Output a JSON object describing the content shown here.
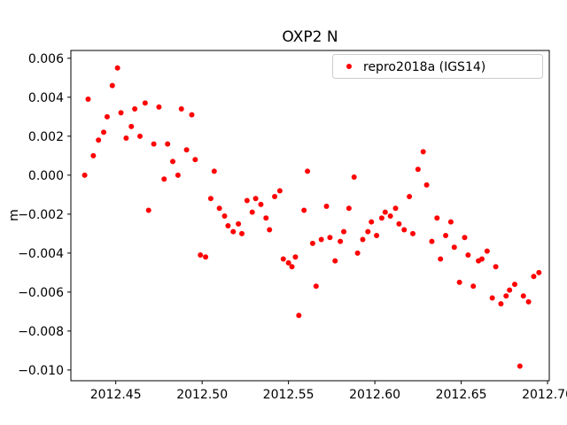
{
  "chart_data": {
    "type": "scatter",
    "title": "OXP2 N",
    "xlabel": "",
    "ylabel": "m",
    "grid": false,
    "legend_position": "upper right",
    "xlim": [
      2012.424,
      2012.701
    ],
    "ylim": [
      -0.01055,
      0.0064
    ],
    "xticks": [
      2012.45,
      2012.5,
      2012.55,
      2012.6,
      2012.65,
      2012.7
    ],
    "yticks": [
      0.006,
      0.004,
      0.002,
      0.0,
      -0.002,
      -0.004,
      -0.006,
      -0.008,
      -0.01
    ],
    "marker": {
      "shape": "circle",
      "size": 3,
      "color": "#ff0000"
    },
    "series": [
      {
        "name": "repro2018a (IGS14)",
        "color": "#ff0000",
        "points": [
          [
            2012.432,
            0.0
          ],
          [
            2012.434,
            0.0039
          ],
          [
            2012.437,
            0.001
          ],
          [
            2012.44,
            0.0018
          ],
          [
            2012.443,
            0.0022
          ],
          [
            2012.445,
            0.003
          ],
          [
            2012.448,
            0.0046
          ],
          [
            2012.451,
            0.0055
          ],
          [
            2012.453,
            0.0032
          ],
          [
            2012.456,
            0.0019
          ],
          [
            2012.459,
            0.0025
          ],
          [
            2012.461,
            0.0034
          ],
          [
            2012.464,
            0.002
          ],
          [
            2012.467,
            0.0037
          ],
          [
            2012.469,
            -0.0018
          ],
          [
            2012.472,
            0.0016
          ],
          [
            2012.475,
            0.0035
          ],
          [
            2012.478,
            -0.0002
          ],
          [
            2012.48,
            0.0016
          ],
          [
            2012.483,
            0.0007
          ],
          [
            2012.486,
            0.0
          ],
          [
            2012.488,
            0.0034
          ],
          [
            2012.491,
            0.0013
          ],
          [
            2012.494,
            0.0031
          ],
          [
            2012.496,
            0.0008
          ],
          [
            2012.499,
            -0.0041
          ],
          [
            2012.502,
            -0.0042
          ],
          [
            2012.505,
            -0.0012
          ],
          [
            2012.507,
            0.0002
          ],
          [
            2012.51,
            -0.0017
          ],
          [
            2012.513,
            -0.0021
          ],
          [
            2012.515,
            -0.0026
          ],
          [
            2012.518,
            -0.0029
          ],
          [
            2012.521,
            -0.0025
          ],
          [
            2012.523,
            -0.003
          ],
          [
            2012.526,
            -0.0013
          ],
          [
            2012.529,
            -0.0019
          ],
          [
            2012.531,
            -0.0012
          ],
          [
            2012.534,
            -0.0015
          ],
          [
            2012.537,
            -0.0022
          ],
          [
            2012.539,
            -0.0028
          ],
          [
            2012.542,
            -0.0011
          ],
          [
            2012.545,
            -0.0008
          ],
          [
            2012.547,
            -0.0043
          ],
          [
            2012.55,
            -0.0045
          ],
          [
            2012.552,
            -0.0047
          ],
          [
            2012.554,
            -0.0042
          ],
          [
            2012.556,
            -0.0072
          ],
          [
            2012.559,
            -0.0018
          ],
          [
            2012.561,
            0.0002
          ],
          [
            2012.564,
            -0.0035
          ],
          [
            2012.566,
            -0.0057
          ],
          [
            2012.569,
            -0.0033
          ],
          [
            2012.572,
            -0.0016
          ],
          [
            2012.574,
            -0.0032
          ],
          [
            2012.577,
            -0.0044
          ],
          [
            2012.58,
            -0.0034
          ],
          [
            2012.582,
            -0.0029
          ],
          [
            2012.585,
            -0.0017
          ],
          [
            2012.588,
            -0.0001
          ],
          [
            2012.59,
            -0.004
          ],
          [
            2012.593,
            -0.0033
          ],
          [
            2012.596,
            -0.0029
          ],
          [
            2012.598,
            -0.0024
          ],
          [
            2012.601,
            -0.0031
          ],
          [
            2012.604,
            -0.0022
          ],
          [
            2012.606,
            -0.0019
          ],
          [
            2012.609,
            -0.0021
          ],
          [
            2012.612,
            -0.0017
          ],
          [
            2012.614,
            -0.0025
          ],
          [
            2012.617,
            -0.0028
          ],
          [
            2012.62,
            -0.0011
          ],
          [
            2012.622,
            -0.003
          ],
          [
            2012.625,
            0.0003
          ],
          [
            2012.628,
            0.0012
          ],
          [
            2012.63,
            -0.0005
          ],
          [
            2012.633,
            -0.0034
          ],
          [
            2012.636,
            -0.0022
          ],
          [
            2012.638,
            -0.0043
          ],
          [
            2012.641,
            -0.0031
          ],
          [
            2012.644,
            -0.0024
          ],
          [
            2012.646,
            -0.0037
          ],
          [
            2012.649,
            -0.0055
          ],
          [
            2012.652,
            -0.0032
          ],
          [
            2012.654,
            -0.0041
          ],
          [
            2012.657,
            -0.0057
          ],
          [
            2012.66,
            -0.0044
          ],
          [
            2012.662,
            -0.0043
          ],
          [
            2012.665,
            -0.0039
          ],
          [
            2012.668,
            -0.0063
          ],
          [
            2012.67,
            -0.0047
          ],
          [
            2012.673,
            -0.0066
          ],
          [
            2012.676,
            -0.0062
          ],
          [
            2012.678,
            -0.0059
          ],
          [
            2012.681,
            -0.0056
          ],
          [
            2012.684,
            -0.0098
          ],
          [
            2012.686,
            -0.0062
          ],
          [
            2012.689,
            -0.0065
          ],
          [
            2012.692,
            -0.0052
          ],
          [
            2012.695,
            -0.005
          ]
        ]
      }
    ]
  }
}
